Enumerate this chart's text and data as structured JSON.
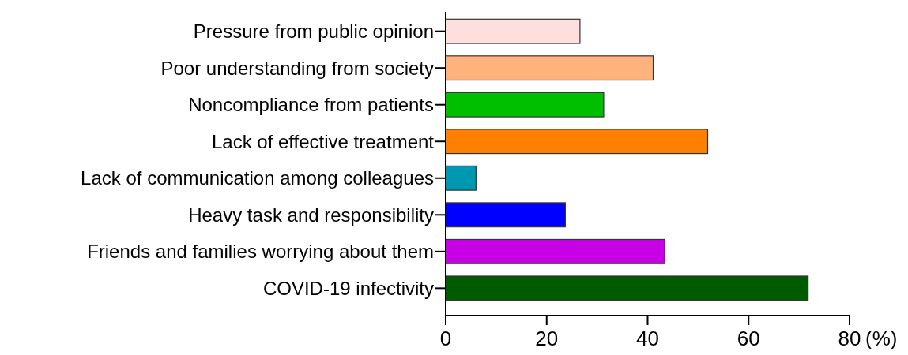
{
  "chart_data": {
    "type": "bar",
    "orientation": "horizontal",
    "xlabel": "(%)",
    "categories": [
      "Pressure from public opinion",
      "Poor understanding from society",
      "Noncompliance from patients",
      "Lack of effective treatment",
      "Lack of communication among colleagues",
      "Heavy task and responsibility",
      "Friends and families worrying about them",
      "COVID-19 infectivity"
    ],
    "values": [
      26.6,
      41.1,
      31.3,
      51.9,
      6.0,
      23.7,
      43.4,
      71.8
    ],
    "colors": [
      "#ffdede",
      "#ffb27c",
      "#00bf00",
      "#ff8000",
      "#0097b0",
      "#0000ff",
      "#c800e6",
      "#005a00"
    ],
    "xlim": [
      0,
      80
    ],
    "xticks": [
      0,
      20,
      40,
      60,
      80
    ],
    "grid": false
  }
}
